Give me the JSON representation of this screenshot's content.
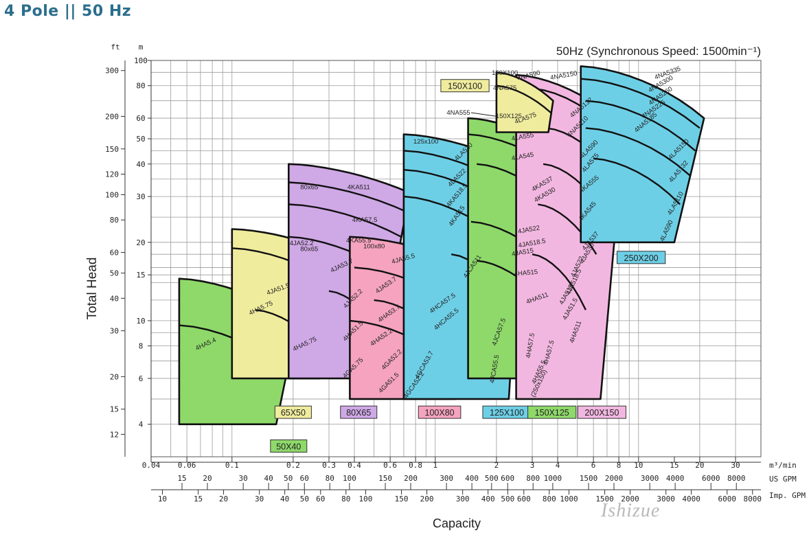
{
  "page": {
    "title": "4 Pole || 50 Hz",
    "watermark": "Ishizue"
  },
  "chart_data": {
    "type": "area",
    "title": "50Hz (Synchronous Speed: 1500min⁻¹)",
    "xlabel": "Capacity",
    "ylabel": "Total Head",
    "x_scale": "log",
    "y_scale": "log",
    "xlim": [
      0.04,
      40
    ],
    "ylim": [
      3,
      100
    ],
    "x_unit": "m³/min",
    "y_unit_left": "ft",
    "y_unit_right": "m",
    "x_ticks": [
      0.04,
      0.06,
      0.1,
      0.2,
      0.3,
      0.4,
      0.6,
      0.8,
      1,
      2,
      3,
      4,
      6,
      8,
      10,
      15,
      20,
      30
    ],
    "y_ticks_m": [
      4,
      6,
      8,
      10,
      15,
      20,
      30,
      40,
      50,
      60,
      80,
      100
    ],
    "y_ticks_ft": [
      12,
      15,
      20,
      30,
      40,
      50,
      60,
      80,
      100,
      120,
      150,
      200,
      300
    ],
    "us_gpm_ticks": [
      15,
      20,
      30,
      40,
      50,
      60,
      80,
      100,
      150,
      200,
      300,
      400,
      500,
      600,
      800,
      1000,
      1500,
      2000,
      3000,
      4000,
      6000,
      8000
    ],
    "us_gpm_label": "US GPM",
    "imp_gpm_ticks": [
      10,
      15,
      20,
      30,
      40,
      50,
      60,
      80,
      100,
      150,
      200,
      300,
      400,
      500,
      600,
      800,
      1000,
      1500,
      2000,
      3000,
      4000,
      6000,
      8000
    ],
    "imp_gpm_label": "Imp. GPM",
    "grid": true,
    "colors": {
      "50X40": "#8ed96a",
      "65X50": "#f0ec9e",
      "80X65": "#cfa8e6",
      "100X80": "#f5a3bf",
      "125X100": "#6dcfe6",
      "150X125": "#8ed96a",
      "150X100": "#f0ec9e",
      "200X150": "#f2b7e0",
      "250X200": "#6dcfe6"
    },
    "series": [
      {
        "name": "50X40",
        "models": [
          "4HA5.75",
          "4HA5.4"
        ],
        "q_range": [
          0.055,
          0.21
        ],
        "h_range": [
          4,
          14.5
        ]
      },
      {
        "name": "65X50",
        "models": [
          "4JA52.2",
          "4JA51.5",
          "4HA5.75"
        ],
        "q_range": [
          0.1,
          0.33
        ],
        "h_range": [
          6,
          22.5
        ]
      },
      {
        "name": "80X65",
        "models": [
          "4KA511",
          "4KA57.5",
          "4KA55.5",
          "4JA53.7",
          "4JA52.2",
          "4HA51.5",
          "4GA5.75"
        ],
        "q_range": [
          0.19,
          0.75
        ],
        "h_range": [
          6,
          40
        ]
      },
      {
        "name": "100X80",
        "models": [
          "4JA55.5",
          "4JA53.7",
          "4HA53.7",
          "4HA52.2",
          "4GA52.2",
          "4GA51.5",
          "4GCA53.7",
          "4GCA52.2"
        ],
        "q_range": [
          0.38,
          1.55
        ],
        "h_range": [
          5,
          21
        ]
      },
      {
        "name": "125X100",
        "models": [
          "4LA530",
          "4LA522",
          "4KA518.5",
          "4KA515",
          "4JCA511",
          "4HCA57.5",
          "4HCA55.5",
          "4JCA57.5",
          "4JCA55.5"
        ],
        "q_range": [
          0.7,
          2.7
        ],
        "h_range": [
          5,
          52
        ]
      },
      {
        "name": "150X125",
        "models": [
          "4LA575",
          "4LA555",
          "4LA545",
          "4KA537",
          "4KA530",
          "4JA522",
          "4JA518.5",
          "4JA515",
          "4HA515",
          "4HA511",
          "4HA57.5"
        ],
        "q_range": [
          1.45,
          4.1
        ],
        "h_range": [
          6,
          60
        ]
      },
      {
        "name": "150X100",
        "models": [
          "4NA590",
          "4NA575",
          "4NA555"
        ],
        "q_range": [
          2,
          3.8
        ],
        "h_range": [
          53,
          90
        ]
      },
      {
        "name": "200X150",
        "models": [
          "4NA5150",
          "4NA5132",
          "4NA5110",
          "4LA590",
          "4LA575",
          "4KA555",
          "4KA545",
          "4JA537",
          "4JA530",
          "4JA522",
          "4JA518.5",
          "4JA515",
          "4HA511",
          "4HA57.5",
          "4HA55.5"
        ],
        "q_range": [
          2.5,
          8.5
        ],
        "h_range": [
          5,
          88
        ]
      },
      {
        "name": "250X200",
        "models": [
          "4NA5335",
          "4NA5300",
          "4NA5260",
          "4NA5225",
          "4NA5185",
          "4LA5150",
          "4LA5132",
          "4LA5110",
          "4LA590"
        ],
        "q_range": [
          5.2,
          21
        ],
        "h_range": [
          20,
          95
        ]
      }
    ]
  }
}
